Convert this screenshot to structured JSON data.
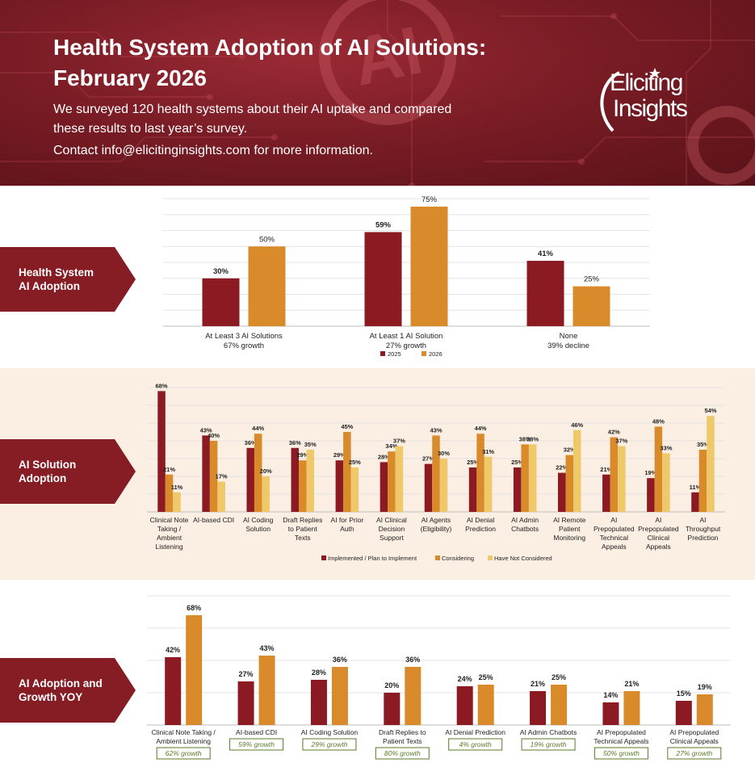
{
  "header": {
    "title_line1": "Health System Adoption of AI Solutions:",
    "title_line2": "February 2026",
    "subtitle_line1": "We surveyed 120 health systems about their AI uptake and compared",
    "subtitle_line2": "these results to last year’s survey.",
    "contact": "Contact info@elicitinginsights.com for more information.",
    "logo_line1": "Eliciting",
    "logo_line2": "Insights"
  },
  "sections": {
    "adoption_tag": "Health System\nAI Adoption",
    "solution_tag": "AI Solution\nAdoption",
    "growth_tag": "AI Adoption and\nGrowth YOY"
  },
  "colors": {
    "implemented": "#8b1a22",
    "considering": "#d98a2b",
    "not_considered": "#efc86a",
    "growth_text": "#5a7a26",
    "tag": "#861c24"
  },
  "chart_data": [
    {
      "type": "bar",
      "id": "adoption",
      "title": "Health System AI Adoption",
      "categories": [
        "At Least 3 AI Solutions",
        "At Least 1 AI Solution",
        "None"
      ],
      "subcaptions": [
        "67% growth",
        "27% growth",
        "39% decline"
      ],
      "series": [
        {
          "name": "2025",
          "values": [
            30,
            59,
            41
          ],
          "labels": [
            "30%",
            "59%",
            "41%"
          ]
        },
        {
          "name": "2026",
          "values": [
            50,
            75,
            25
          ],
          "labels": [
            "50%",
            "75%",
            "25%"
          ]
        }
      ],
      "ylim": [
        0,
        80
      ],
      "grid": true,
      "legend": "bottom-center"
    },
    {
      "type": "bar",
      "id": "solutions",
      "title": "AI Solution Adoption",
      "categories": [
        "Clinical Note\nTaking /\nAmbient\nListening",
        "AI-based CDI",
        "AI Coding\nSolution",
        "Draft Replies\nto Patient\nTexts",
        "AI for Prior\nAuth",
        "AI Clinical\nDecision\nSupport",
        "AI Agents\n(Eligibility)",
        "AI Denial\nPrediction",
        "AI Admin\nChatbots",
        "AI Remote\nPatient\nMonitoring",
        "AI\nPrepopulated\nTechnical\nAppeals",
        "AI\nPrepopulated\nClinical\nAppeals",
        "AI\nThroughput\nPrediction"
      ],
      "series": [
        {
          "name": "Implemented / Plan to Implement",
          "values": [
            68,
            43,
            36,
            36,
            29,
            28,
            27,
            25,
            25,
            22,
            21,
            19,
            11
          ],
          "labels": [
            "68%",
            "43%",
            "36%",
            "36%",
            "29%",
            "28%",
            "27%",
            "25%",
            "25%",
            "22%",
            "21%",
            "19%",
            "11%"
          ]
        },
        {
          "name": "Considering",
          "values": [
            21,
            40,
            44,
            29,
            45,
            34,
            43,
            44,
            38,
            32,
            42,
            48,
            35
          ],
          "labels": [
            "21%",
            "40%",
            "44%",
            "29%",
            "45%",
            "34%",
            "43%",
            "44%",
            "38%",
            "32%",
            "42%",
            "48%",
            "35%"
          ]
        },
        {
          "name": "Have Not Considered",
          "values": [
            11,
            17,
            20,
            35,
            25,
            37,
            30,
            31,
            38,
            46,
            37,
            33,
            54
          ],
          "labels": [
            "11%",
            "17%",
            "20%",
            "35%",
            "25%",
            "37%",
            "30%",
            "31%",
            "38%",
            "46%",
            "37%",
            "33%",
            "54%"
          ]
        }
      ],
      "ylim": [
        0,
        70
      ],
      "grid": true,
      "legend": "bottom-center"
    },
    {
      "type": "bar",
      "id": "growth",
      "title": "AI Adoption and Growth YOY",
      "categories": [
        "Clinical Note Taking /\nAmbient Listening",
        "AI-based CDI",
        "AI Coding Solution",
        "Draft Replies to\nPatient Texts",
        "AI Denial Prediction",
        "AI Admin Chatbots",
        "AI Prepopulated\nTechnical Appeals",
        "AI Prepopulated\nClinical Appeals"
      ],
      "growth": [
        "62% growth",
        "59% growth",
        "29% growth",
        "80% growth",
        "4% growth",
        "19% growth",
        "50% growth",
        "27% growth"
      ],
      "series": [
        {
          "name": "2025",
          "values": [
            42,
            27,
            28,
            20,
            24,
            21,
            14,
            15
          ],
          "labels": [
            "42%",
            "27%",
            "28%",
            "20%",
            "24%",
            "21%",
            "14%",
            "15%"
          ]
        },
        {
          "name": "2026",
          "values": [
            68,
            43,
            36,
            36,
            25,
            25,
            21,
            19
          ],
          "labels": [
            "68%",
            "43%",
            "36%",
            "36%",
            "25%",
            "25%",
            "21%",
            "19%"
          ]
        }
      ],
      "ylim": [
        0,
        80
      ],
      "grid": true,
      "legend": "none"
    }
  ]
}
